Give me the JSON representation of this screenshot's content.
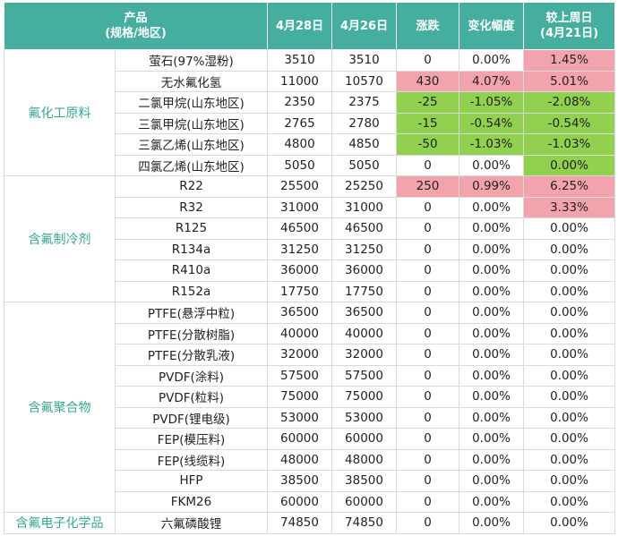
{
  "header": {
    "product": "产品",
    "product_sub": "(规格/地区)",
    "date1": "4月28日",
    "date2": "4月26日",
    "change": "涨跌",
    "pct": "变化幅度",
    "week": "较上周日",
    "week_sub": "(4月21日)"
  },
  "colors": {
    "up": "#f3a3ab",
    "down": "#92d050"
  },
  "groups": [
    {
      "name": "氟化工原料",
      "rows": [
        {
          "product": "萤石(97%湿粉)",
          "date1": 3510,
          "date2": 3510,
          "change": 0,
          "pct": "0.00%",
          "week": "1.45%",
          "highlight": [
            null,
            null,
            "up"
          ]
        },
        {
          "product": "无水氟化氢",
          "date1": 11000,
          "date2": 10570,
          "change": 430,
          "pct": "4.07%",
          "week": "5.01%",
          "highlight": [
            "up",
            "up",
            "up"
          ]
        },
        {
          "product": "二氯甲烷(山东地区)",
          "date1": 2350,
          "date2": 2375,
          "change": -25,
          "pct": "-1.05%",
          "week": "-2.08%",
          "highlight": [
            "down",
            "down",
            "down"
          ]
        },
        {
          "product": "三氯甲烷(山东地区)",
          "date1": 2765,
          "date2": 2780,
          "change": -15,
          "pct": "-0.54%",
          "week": "-0.54%",
          "highlight": [
            "down",
            "down",
            "down"
          ]
        },
        {
          "product": "三氯乙烯(山东地区)",
          "date1": 4800,
          "date2": 4850,
          "change": -50,
          "pct": "-1.03%",
          "week": "-1.03%",
          "highlight": [
            "down",
            "down",
            "down"
          ]
        },
        {
          "product": "四氯乙烯(山东地区)",
          "date1": 5050,
          "date2": 5050,
          "change": 0,
          "pct": "0.00%",
          "week": "0.00%",
          "highlight": [
            null,
            null,
            "down"
          ]
        }
      ]
    },
    {
      "name": "含氟制冷剂",
      "rows": [
        {
          "product": "R22",
          "date1": 25500,
          "date2": 25250,
          "change": 250,
          "pct": "0.99%",
          "week": "6.25%",
          "highlight": [
            "up",
            "up",
            "up"
          ]
        },
        {
          "product": "R32",
          "date1": 31000,
          "date2": 31000,
          "change": 0,
          "pct": "0.00%",
          "week": "3.33%",
          "highlight": [
            null,
            null,
            "up"
          ]
        },
        {
          "product": "R125",
          "date1": 46500,
          "date2": 46500,
          "change": 0,
          "pct": "0.00%",
          "week": "0.00%",
          "highlight": [
            null,
            null,
            null
          ]
        },
        {
          "product": "R134a",
          "date1": 31250,
          "date2": 31250,
          "change": 0,
          "pct": "0.00%",
          "week": "0.00%",
          "highlight": [
            null,
            null,
            null
          ]
        },
        {
          "product": "R410a",
          "date1": 36000,
          "date2": 36000,
          "change": 0,
          "pct": "0.00%",
          "week": "0.00%",
          "highlight": [
            null,
            null,
            null
          ]
        },
        {
          "product": "R152a",
          "date1": 17750,
          "date2": 17750,
          "change": 0,
          "pct": "0.00%",
          "week": "0.00%",
          "highlight": [
            null,
            null,
            null
          ]
        }
      ]
    },
    {
      "name": "含氟聚合物",
      "rows": [
        {
          "product": "PTFE(悬浮中粒)",
          "date1": 36500,
          "date2": 36500,
          "change": 0,
          "pct": "0.00%",
          "week": "0.00%",
          "highlight": [
            null,
            null,
            null
          ]
        },
        {
          "product": "PTFE(分散树脂)",
          "date1": 40000,
          "date2": 40000,
          "change": 0,
          "pct": "0.00%",
          "week": "0.00%",
          "highlight": [
            null,
            null,
            null
          ]
        },
        {
          "product": "PTFE(分散乳液)",
          "date1": 32000,
          "date2": 32000,
          "change": 0,
          "pct": "0.00%",
          "week": "0.00%",
          "highlight": [
            null,
            null,
            null
          ]
        },
        {
          "product": "PVDF(涂料)",
          "date1": 57500,
          "date2": 57500,
          "change": 0,
          "pct": "0.00%",
          "week": "0.00%",
          "highlight": [
            null,
            null,
            null
          ]
        },
        {
          "product": "PVDF(粒料)",
          "date1": 75000,
          "date2": 75000,
          "change": 0,
          "pct": "0.00%",
          "week": "0.00%",
          "highlight": [
            null,
            null,
            null
          ]
        },
        {
          "product": "PVDF(锂电级)",
          "date1": 53000,
          "date2": 53000,
          "change": 0,
          "pct": "0.00%",
          "week": "0.00%",
          "highlight": [
            null,
            null,
            null
          ]
        },
        {
          "product": "FEP(模压料)",
          "date1": 60000,
          "date2": 60000,
          "change": 0,
          "pct": "0.00%",
          "week": "0.00%",
          "highlight": [
            null,
            null,
            null
          ]
        },
        {
          "product": "FEP(线缆料)",
          "date1": 48000,
          "date2": 48000,
          "change": 0,
          "pct": "0.00%",
          "week": "0.00%",
          "highlight": [
            null,
            null,
            null
          ]
        },
        {
          "product": "HFP",
          "date1": 38500,
          "date2": 38500,
          "change": 0,
          "pct": "0.00%",
          "week": "0.00%",
          "highlight": [
            null,
            null,
            null
          ]
        },
        {
          "product": "FKM26",
          "date1": 60000,
          "date2": 60000,
          "change": 0,
          "pct": "0.00%",
          "week": "0.00%",
          "highlight": [
            null,
            null,
            null
          ]
        }
      ]
    },
    {
      "name": "含氟电子化学品",
      "rows": [
        {
          "product": "六氟磷酸锂",
          "date1": 74850,
          "date2": 74850,
          "change": 0,
          "pct": "0.00%",
          "week": "0.00%",
          "highlight": [
            null,
            null,
            null
          ]
        }
      ]
    }
  ]
}
